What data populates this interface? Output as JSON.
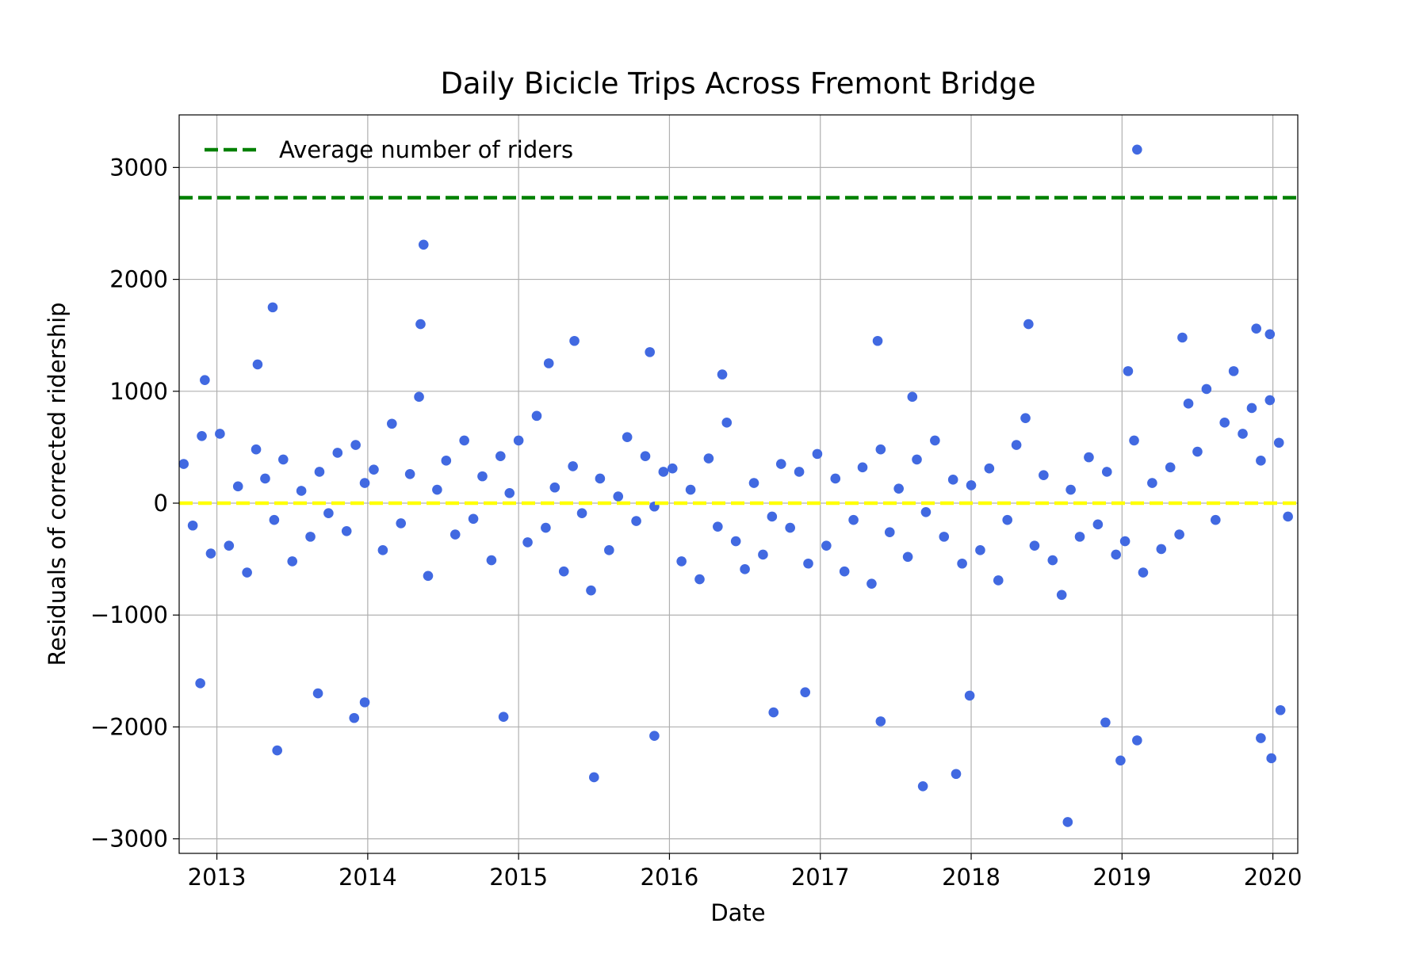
{
  "chart_data": {
    "type": "scatter",
    "title": "Daily Bicicle Trips Across Fremont Bridge",
    "x_label": "Date",
    "y_label": "Residuals of corrected ridership",
    "xlim": [
      2012.75,
      2020.165
    ],
    "ylim": [
      -3130,
      3470
    ],
    "xticks": [
      2013,
      2014,
      2015,
      2016,
      2017,
      2018,
      2019,
      2020
    ],
    "yticks": [
      {
        "value": -3000,
        "label": "−3000"
      },
      {
        "value": -2000,
        "label": "−2000"
      },
      {
        "value": -1000,
        "label": "−1000"
      },
      0,
      1000,
      2000,
      3000
    ],
    "grid": true,
    "legend": "upper left",
    "reference_lines": [
      {
        "name": "Average number of riders",
        "value": 2730,
        "color": "#008000",
        "style": "dashed"
      },
      {
        "value": 0,
        "color": "#ffff00",
        "style": "dashed"
      }
    ],
    "series": [
      {
        "color": "#4169e1",
        "x": [
          2012.78,
          2012.84,
          2012.9,
          2012.96,
          2013.02,
          2013.08,
          2013.14,
          2013.2,
          2013.26,
          2013.32,
          2013.38,
          2013.44,
          2013.5,
          2013.56,
          2013.62,
          2013.68,
          2013.74,
          2013.8,
          2013.86,
          2013.92,
          2013.98,
          2014.04,
          2014.1,
          2014.16,
          2014.22,
          2014.28,
          2014.34,
          2014.4,
          2014.46,
          2014.52,
          2014.58,
          2014.64,
          2014.7,
          2014.76,
          2014.82,
          2014.88,
          2014.94,
          2015.0,
          2015.06,
          2015.12,
          2015.18,
          2015.24,
          2015.3,
          2015.36,
          2015.42,
          2015.48,
          2015.54,
          2015.6,
          2015.66,
          2015.72,
          2015.78,
          2015.84,
          2015.9,
          2015.96,
          2016.02,
          2016.08,
          2016.14,
          2016.2,
          2016.26,
          2016.32,
          2016.38,
          2016.44,
          2016.5,
          2016.56,
          2016.62,
          2016.68,
          2016.74,
          2016.8,
          2016.86,
          2016.92,
          2016.98,
          2017.04,
          2017.1,
          2017.16,
          2017.22,
          2017.28,
          2017.34,
          2017.4,
          2017.46,
          2017.52,
          2017.58,
          2017.64,
          2017.7,
          2017.76,
          2017.82,
          2017.88,
          2017.94,
          2018.0,
          2018.06,
          2018.12,
          2018.18,
          2018.24,
          2018.3,
          2018.36,
          2018.42,
          2018.48,
          2018.54,
          2018.6,
          2018.66,
          2018.72,
          2018.78,
          2018.84,
          2018.9,
          2018.96,
          2019.02,
          2019.08,
          2019.14,
          2019.2,
          2019.26,
          2019.32,
          2019.38,
          2019.44,
          2019.5,
          2019.56,
          2019.62,
          2019.68,
          2019.74,
          2019.8,
          2019.86,
          2019.92,
          2019.98,
          2020.04,
          2020.1,
          2019.1,
          2014.37,
          2013.37,
          2013.4,
          2012.89,
          2014.35,
          2015.37,
          2015.5,
          2015.87,
          2015.9,
          2017.38,
          2017.4,
          2017.68,
          2017.9,
          2018.38,
          2018.64,
          2018.89,
          2018.99,
          2019.1,
          2019.04,
          2019.89,
          2019.98,
          2019.92,
          2019.99,
          2020.05,
          2019.4,
          2014.9,
          2013.91,
          2013.98,
          2013.67,
          2016.69,
          2016.9,
          2017.99,
          2015.2,
          2013.27,
          2016.35,
          2012.92,
          2017.61
        ],
        "values": [
          350,
          -200,
          600,
          -450,
          620,
          -380,
          150,
          -620,
          480,
          220,
          -150,
          390,
          -520,
          110,
          -300,
          280,
          -90,
          450,
          -250,
          520,
          180,
          300,
          -420,
          710,
          -180,
          260,
          950,
          -650,
          120,
          380,
          -280,
          560,
          -140,
          240,
          -510,
          420,
          90,
          560,
          -350,
          780,
          -220,
          140,
          -610,
          330,
          -90,
          -780,
          220,
          -420,
          60,
          590,
          -160,
          420,
          -30,
          280,
          310,
          -520,
          120,
          -680,
          400,
          -210,
          720,
          -340,
          -590,
          180,
          -460,
          -120,
          350,
          -220,
          280,
          -540,
          440,
          -380,
          220,
          -610,
          -150,
          320,
          -720,
          480,
          -260,
          130,
          -480,
          390,
          -80,
          560,
          -300,
          210,
          -540,
          160,
          -420,
          310,
          -690,
          -150,
          520,
          760,
          -380,
          250,
          -510,
          -820,
          120,
          -300,
          410,
          -190,
          280,
          -460,
          -340,
          560,
          -620,
          180,
          -410,
          320,
          -280,
          890,
          460,
          1020,
          -150,
          720,
          1180,
          620,
          850,
          380,
          920,
          540,
          -120,
          3160,
          2310,
          1750,
          -2210,
          -1610,
          1600,
          1450,
          -2450,
          1350,
          -2080,
          1450,
          -1950,
          -2530,
          -2420,
          1600,
          -2850,
          -1960,
          -2300,
          -2120,
          1180,
          1560,
          1510,
          -2100,
          -2280,
          -1850,
          1480,
          -1910,
          -1920,
          -1780,
          -1700,
          -1870,
          -1690,
          -1720,
          1250,
          1240,
          1150,
          1100,
          950
        ]
      }
    ]
  }
}
